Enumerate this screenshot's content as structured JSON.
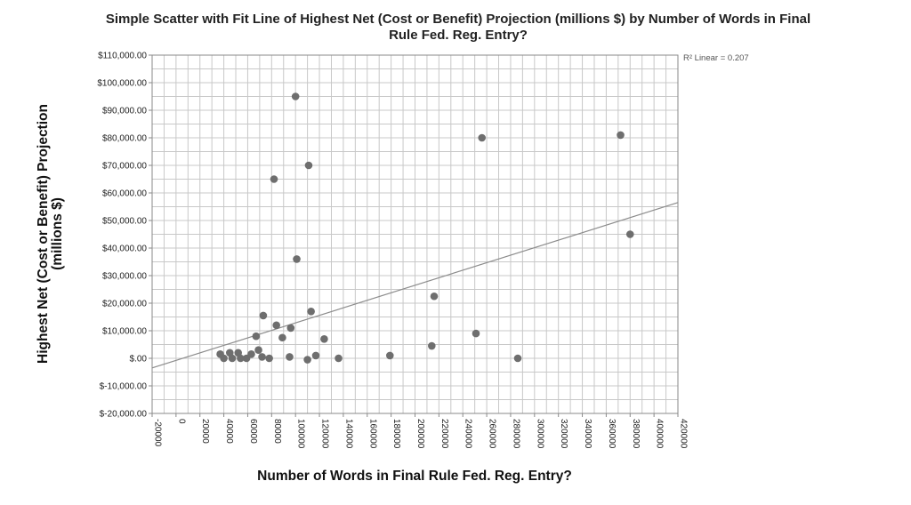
{
  "chart_data": {
    "type": "scatter",
    "title_line1": "Simple Scatter with Fit Line of Highest Net (Cost or Benefit) Projection (millions $) by Number of Words in Final",
    "title_line2": "Rule Fed. Reg. Entry?",
    "xlabel": "Number of Words in Final Rule Fed. Reg. Entry?",
    "ylabel_line1": "Highest Net (Cost or Benefit) Projection",
    "ylabel_line2": "(millions $)",
    "r2_label": "R² Linear = 0.207",
    "xlim": [
      -20000,
      420000
    ],
    "ylim": [
      -20000,
      110000
    ],
    "x_ticks": [
      -20000,
      0,
      20000,
      40000,
      60000,
      80000,
      100000,
      120000,
      140000,
      160000,
      180000,
      200000,
      220000,
      240000,
      260000,
      280000,
      300000,
      320000,
      340000,
      360000,
      380000,
      400000,
      420000
    ],
    "x_tick_labels": [
      "-20000",
      "0",
      "20000",
      "40000",
      "60000",
      "80000",
      "100000",
      "120000",
      "140000",
      "160000",
      "180000",
      "200000",
      "220000",
      "240000",
      "260000",
      "280000",
      "300000",
      "320000",
      "340000",
      "360000",
      "380000",
      "400000",
      "420000"
    ],
    "y_ticks": [
      -20000,
      -10000,
      0,
      10000,
      20000,
      30000,
      40000,
      50000,
      60000,
      70000,
      80000,
      90000,
      100000,
      110000
    ],
    "y_tick_labels": [
      "$-20,000.00",
      "$-10,000.00",
      "$.00",
      "$10,000.00",
      "$20,000.00",
      "$30,000.00",
      "$40,000.00",
      "$50,000.00",
      "$60,000.00",
      "$70,000.00",
      "$80,000.00",
      "$90,000.00",
      "$100,000.00",
      "$110,000.00"
    ],
    "grid": true,
    "fit_line": {
      "x": [
        -20000,
        420000
      ],
      "y": [
        -3500,
        56500
      ]
    },
    "points": [
      {
        "x": 100000,
        "y": 95000
      },
      {
        "x": 256000,
        "y": 80000
      },
      {
        "x": 372000,
        "y": 81000
      },
      {
        "x": 111000,
        "y": 70000
      },
      {
        "x": 82000,
        "y": 65000
      },
      {
        "x": 380000,
        "y": 45000
      },
      {
        "x": 101000,
        "y": 36000
      },
      {
        "x": 216000,
        "y": 22500
      },
      {
        "x": 113000,
        "y": 17000
      },
      {
        "x": 73000,
        "y": 15500
      },
      {
        "x": 84000,
        "y": 12000
      },
      {
        "x": 96000,
        "y": 11000
      },
      {
        "x": 251000,
        "y": 9000
      },
      {
        "x": 67000,
        "y": 8000
      },
      {
        "x": 89000,
        "y": 7500
      },
      {
        "x": 124000,
        "y": 7000
      },
      {
        "x": 214000,
        "y": 4500
      },
      {
        "x": 69000,
        "y": 3000
      },
      {
        "x": 37000,
        "y": 1500
      },
      {
        "x": 45000,
        "y": 2000
      },
      {
        "x": 52000,
        "y": 2000
      },
      {
        "x": 63000,
        "y": 1500
      },
      {
        "x": 179000,
        "y": 1000
      },
      {
        "x": 117000,
        "y": 1000
      },
      {
        "x": 95000,
        "y": 500
      },
      {
        "x": 72000,
        "y": 500
      },
      {
        "x": 40000,
        "y": 0
      },
      {
        "x": 47000,
        "y": 0
      },
      {
        "x": 54000,
        "y": 0
      },
      {
        "x": 59000,
        "y": 0
      },
      {
        "x": 78000,
        "y": 0
      },
      {
        "x": 136000,
        "y": 0
      },
      {
        "x": 286000,
        "y": 0
      },
      {
        "x": 110000,
        "y": -500
      }
    ]
  }
}
